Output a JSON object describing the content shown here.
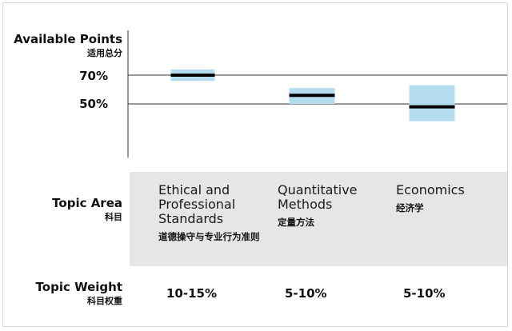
{
  "labels": {
    "available_points_en": "Available Points",
    "available_points_zh": "适用总分",
    "topic_area_en": "Topic Area",
    "topic_area_zh": "科目",
    "topic_weight_en": "Topic Weight",
    "topic_weight_zh": "科目权重"
  },
  "topics": [
    {
      "name_en": "Ethical and Professional Standards",
      "name_zh": "道德操守与专业行为准则",
      "weight": "10-15%"
    },
    {
      "name_en": "Quantitative Methods",
      "name_zh": "定量方法",
      "weight": "5-10%"
    },
    {
      "name_en": "Economics",
      "name_zh": "经济学",
      "weight": "5-10%"
    }
  ],
  "chart_data": {
    "type": "box",
    "categories": [
      "Ethical and Professional Standards",
      "Quantitative Methods",
      "Economics"
    ],
    "y_ticks": [
      {
        "value": 70,
        "label": "70%"
      },
      {
        "value": 50,
        "label": "50%"
      }
    ],
    "ranges": [
      {
        "low": 66,
        "high": 74,
        "mid": 70
      },
      {
        "low": 50,
        "high": 61,
        "mid": 56
      },
      {
        "low": 38,
        "high": 63,
        "mid": 48
      }
    ],
    "colors": {
      "range": "#b3dcef",
      "mid": "#000000",
      "gridline": "#333333",
      "band": "#e6e6e6"
    }
  }
}
